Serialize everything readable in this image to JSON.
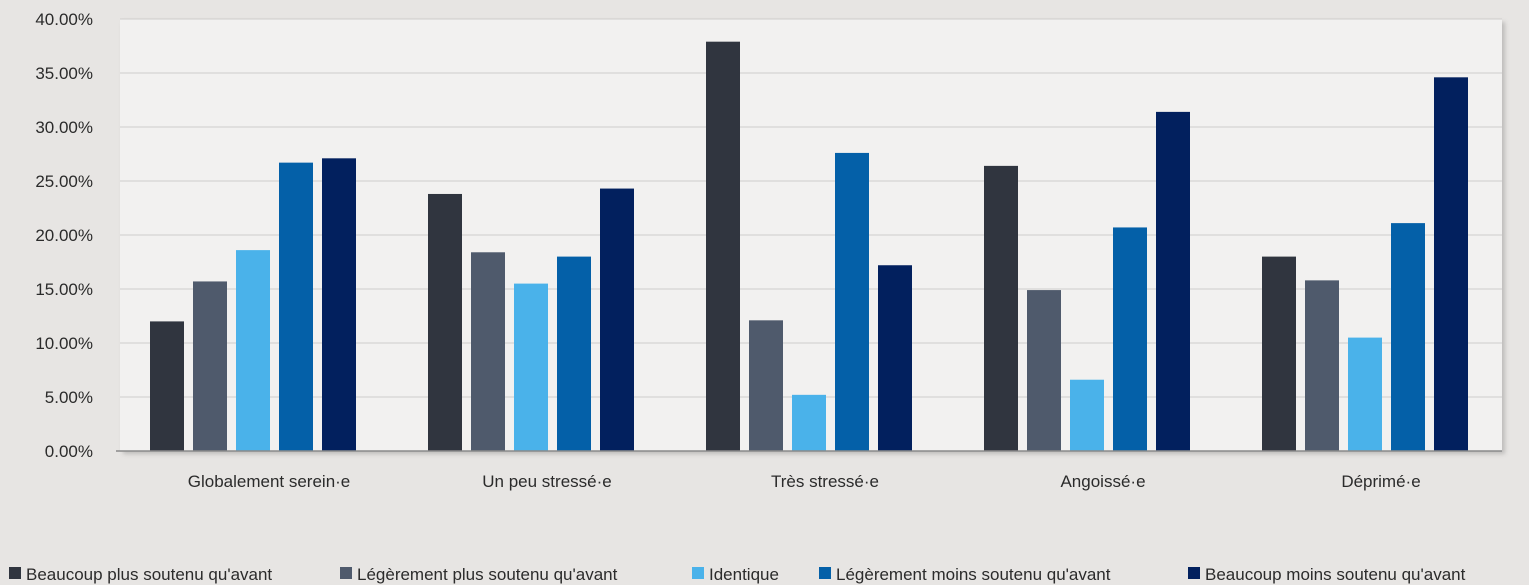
{
  "chart_data": {
    "type": "bar",
    "title": "",
    "xlabel": "",
    "ylabel": "",
    "ylim": [
      0,
      40
    ],
    "y_tick_step": 5,
    "y_tick_format": "percent_2dp",
    "grid": true,
    "legend_position": "bottom",
    "categories": [
      "Globalement serein·e",
      "Un peu stressé·e",
      "Très stressé·e",
      "Angoissé·e",
      "Déprimé·e"
    ],
    "series": [
      {
        "name": "Beaucoup plus soutenu qu'avant",
        "color": "#30353f",
        "values": [
          12.0,
          23.8,
          37.9,
          26.4,
          18.0
        ]
      },
      {
        "name": "Légèrement plus soutenu qu'avant",
        "color": "#4f5a6c",
        "values": [
          15.7,
          18.4,
          12.1,
          14.9,
          15.8
        ]
      },
      {
        "name": "Identique",
        "color": "#4ab2ea",
        "values": [
          18.6,
          15.5,
          5.2,
          6.6,
          10.5
        ]
      },
      {
        "name": "Légèrement moins soutenu qu'avant",
        "color": "#0460a8",
        "values": [
          26.7,
          18.0,
          27.6,
          20.7,
          21.1
        ]
      },
      {
        "name": "Beaucoup moins soutenu qu'avant",
        "color": "#02205e",
        "values": [
          27.1,
          24.3,
          17.2,
          31.4,
          34.6
        ]
      }
    ]
  },
  "colors": {
    "background": "#e7e5e3",
    "plot_area": "#f2f1f0",
    "grid": "#cfcdcb",
    "axis": "#8a8a8a"
  }
}
